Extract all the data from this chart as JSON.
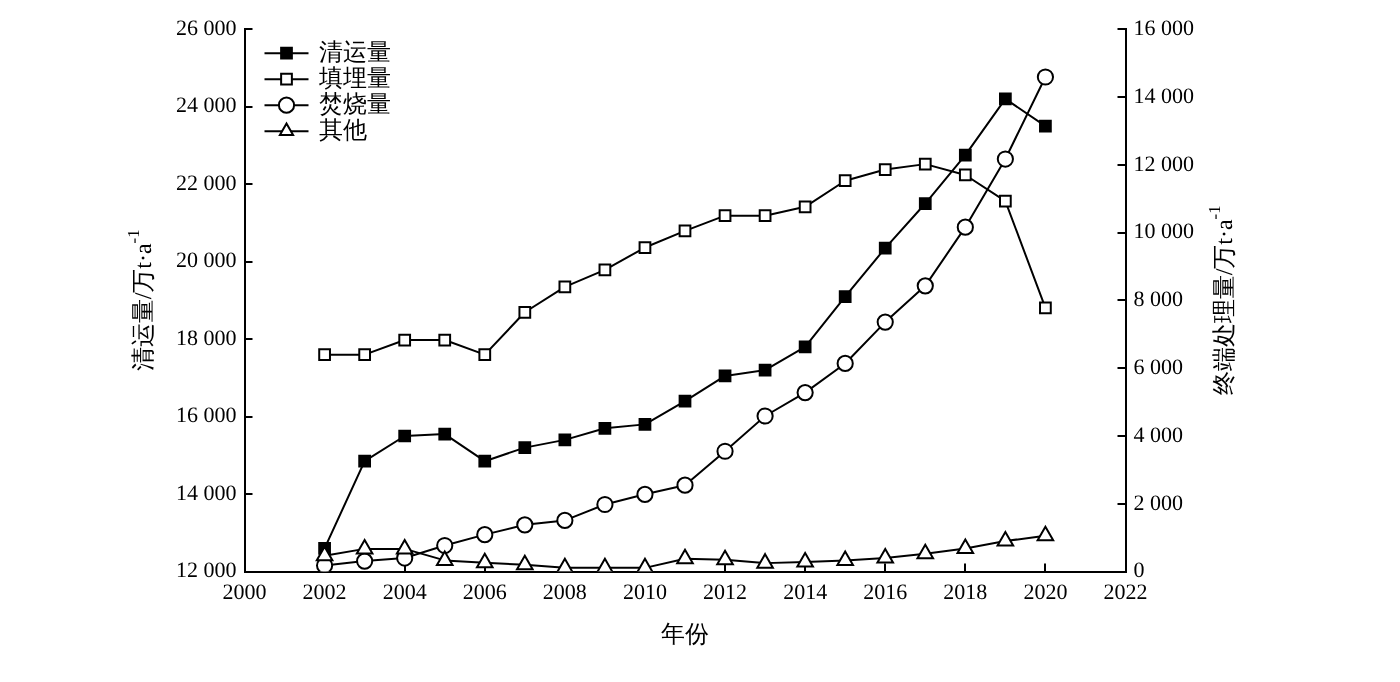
{
  "chart_data": {
    "type": "line",
    "xlabel": "年份",
    "ylabel": "清运量/万t·a$^{-1}$",
    "y2label": "终端处理量/万t·a$^{-1}$",
    "x": [
      2002,
      2003,
      2004,
      2005,
      2006,
      2007,
      2008,
      2009,
      2010,
      2011,
      2012,
      2013,
      2014,
      2015,
      2016,
      2017,
      2018,
      2019,
      2020
    ],
    "series": [
      {
        "name": "清运量",
        "color": "#000000",
        "marker": "square",
        "values": [
          12600,
          14850,
          15500,
          15550,
          14850,
          15200,
          15400,
          15700,
          15800,
          16400,
          17050,
          17200,
          17800,
          19100,
          20350,
          21500,
          22750,
          24200,
          23500
        ]
      },
      {
        "name": "填埋量",
        "color": "#000000",
        "marker": "square",
        "axis": "y2",
        "values": [
          6400,
          6400,
          6830,
          6830,
          6400,
          7650,
          8400,
          8900,
          9560,
          10050,
          10500,
          10500,
          10760,
          11530,
          11860,
          12020,
          11700,
          10930,
          7780
        ]
      },
      {
        "name": "焚烧量",
        "color": "#000000",
        "marker": "circle",
        "axis": "y2",
        "values": [
          180,
          310,
          400,
          770,
          1090,
          1380,
          1510,
          1980,
          2280,
          2550,
          3550,
          4590,
          5280,
          6140,
          7360,
          8430,
          10160,
          12170,
          14590
        ]
      },
      {
        "name": "其他",
        "color": "#000000",
        "marker": "triangle",
        "axis": "y2",
        "values": [
          470,
          670,
          670,
          330,
          260,
          200,
          110,
          110,
          110,
          380,
          350,
          250,
          280,
          330,
          400,
          530,
          680,
          900,
          1060
        ]
      }
    ],
    "xlim": [
      2000,
      2022
    ],
    "xticks": [
      2000,
      2002,
      2004,
      2006,
      2008,
      2010,
      2012,
      2014,
      2016,
      2018,
      2020,
      2022
    ],
    "ylim": [
      12000,
      26000
    ],
    "yticks": [
      {
        "value": 12000,
        "label": "12 000"
      },
      {
        "value": 14000,
        "label": "14 000"
      },
      {
        "value": 16000,
        "label": "16 000"
      },
      {
        "value": 18000,
        "label": "18 000"
      },
      {
        "value": 20000,
        "label": "20 000"
      },
      {
        "value": 22000,
        "label": "22 000"
      },
      {
        "value": 24000,
        "label": "24 000"
      },
      {
        "value": 26000,
        "label": "26 000"
      }
    ],
    "y2lim": [
      0,
      16000
    ],
    "y2ticks": [
      0,
      {
        "value": 2000,
        "label": "2 000"
      },
      {
        "value": 4000,
        "label": "4 000"
      },
      {
        "value": 6000,
        "label": "6 000"
      },
      {
        "value": 8000,
        "label": "8 000"
      },
      {
        "value": 10000,
        "label": "10 000"
      },
      {
        "value": 12000,
        "label": "12 000"
      },
      {
        "value": 14000,
        "label": "14 000"
      },
      {
        "value": 16000,
        "label": "16 000"
      }
    ],
    "grid": false,
    "legend": "top left",
    "line_style": "solid"
  }
}
